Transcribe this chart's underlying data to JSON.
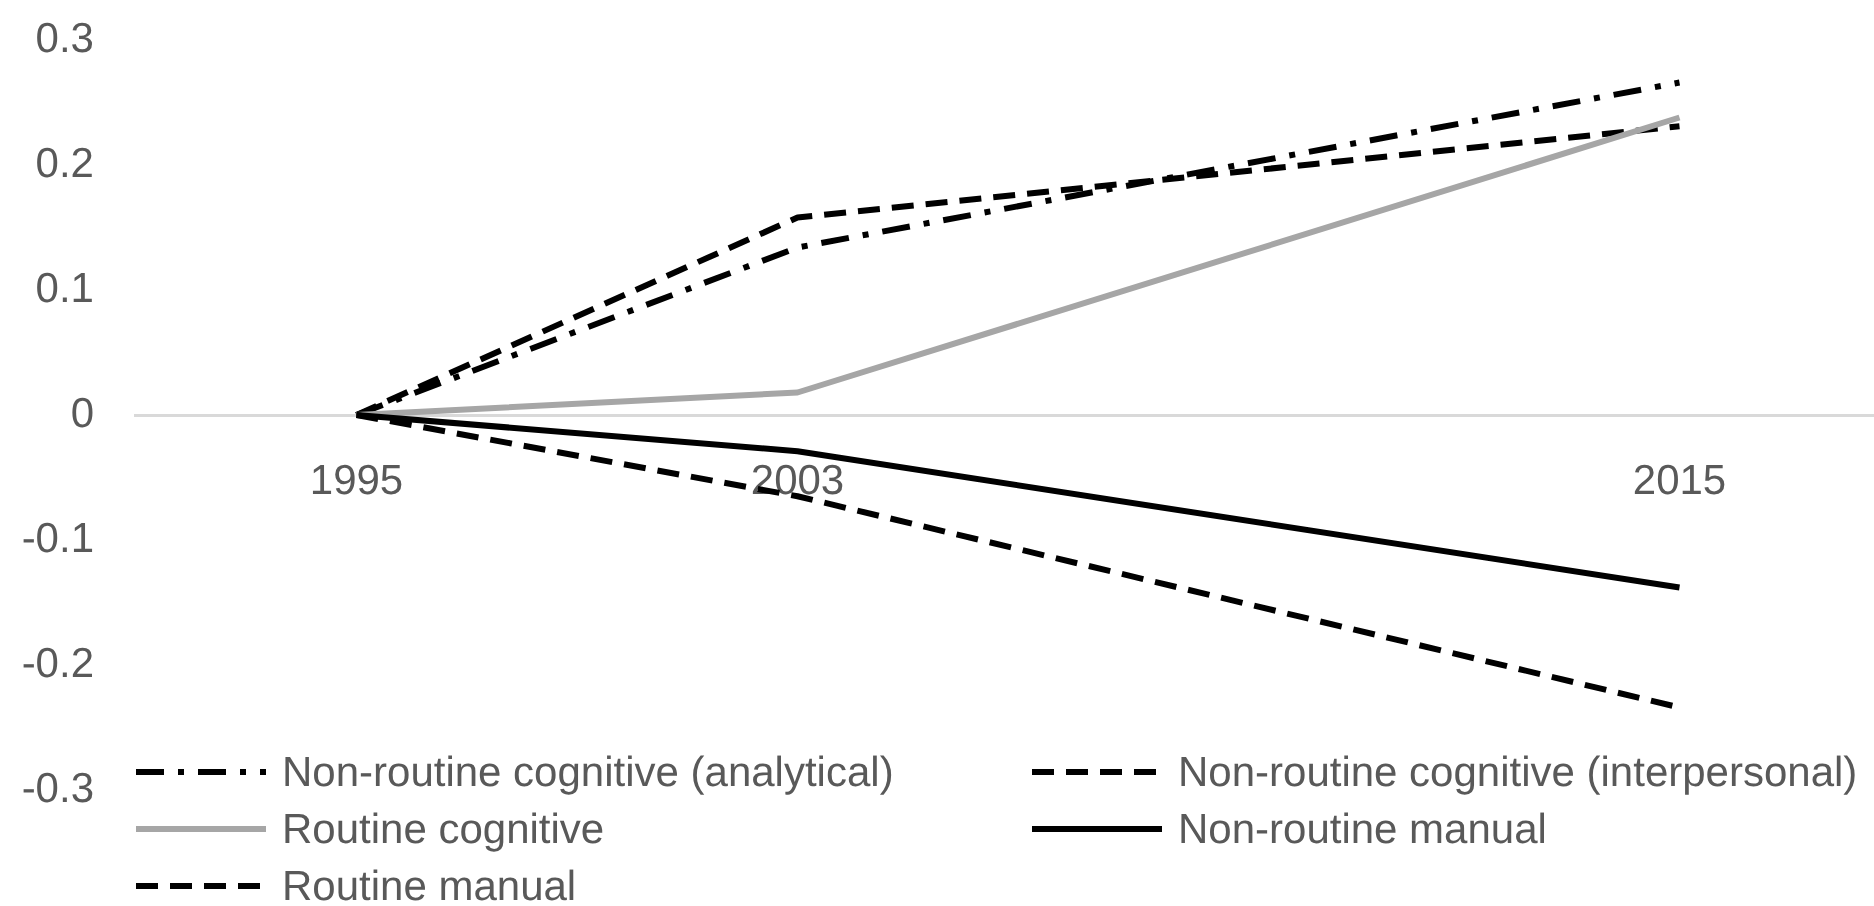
{
  "chart_data": {
    "type": "line",
    "categories": [
      "1995",
      "2003",
      null,
      "2015"
    ],
    "series": [
      {
        "name": "Non-routine cognitive (analytical)",
        "color": "#000000",
        "line_style": "dashdot",
        "values": [
          0,
          0.134,
          null,
          0.266
        ]
      },
      {
        "name": "Non-routine cognitive (interpersonal)",
        "color": "#000000",
        "line_style": "dashed",
        "values": [
          0,
          0.158,
          null,
          0.231
        ]
      },
      {
        "name": "Routine cognitive",
        "color": "#a6a6a6",
        "line_style": "solid",
        "values": [
          0,
          0.018,
          null,
          0.238
        ]
      },
      {
        "name": "Non-routine manual",
        "color": "#000000",
        "line_style": "solid",
        "values": [
          0,
          -0.029,
          null,
          -0.138
        ]
      },
      {
        "name": "Routine manual",
        "color": "#000000",
        "line_style": "dashed",
        "values": [
          0,
          -0.065,
          null,
          -0.234
        ]
      }
    ],
    "ylim": [
      -0.3,
      0.3
    ],
    "yticks": [
      -0.3,
      -0.2,
      -0.1,
      0,
      0.1,
      0.2,
      0.3
    ],
    "legend": "bottom",
    "marker": "none"
  }
}
